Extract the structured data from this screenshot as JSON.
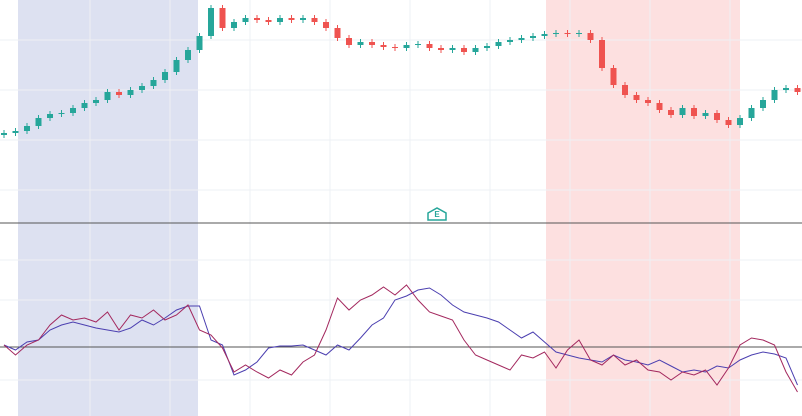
{
  "chart_data": [
    {
      "type": "candlestick",
      "annotation": "E",
      "up_color": "#26a69a",
      "down_color": "#ef5350",
      "ylim": [
        0,
        222
      ],
      "open": [
        87,
        89,
        91,
        96,
        104,
        108,
        109,
        114,
        119,
        122,
        130,
        127,
        132,
        136,
        142,
        150,
        162,
        172,
        186,
        214,
        194,
        200,
        204,
        202,
        200,
        204,
        202,
        204,
        200,
        194,
        184,
        177,
        180,
        177,
        175,
        174,
        177,
        178,
        174,
        172,
        174,
        170,
        174,
        176,
        180,
        182,
        184,
        186,
        188,
        189,
        188,
        189,
        182,
        154,
        137,
        127,
        122,
        119,
        112,
        107,
        114,
        106,
        109,
        102,
        97,
        104,
        114,
        122,
        132,
        134
      ],
      "high": [
        92,
        94,
        99,
        107,
        111,
        112,
        117,
        122,
        125,
        133,
        133,
        135,
        139,
        145,
        153,
        165,
        175,
        189,
        217,
        217,
        203,
        207,
        207,
        205,
        207,
        207,
        207,
        207,
        203,
        197,
        187,
        183,
        183,
        180,
        178,
        180,
        181,
        181,
        177,
        177,
        177,
        177,
        179,
        183,
        185,
        187,
        189,
        191,
        192,
        192,
        192,
        192,
        185,
        157,
        140,
        130,
        125,
        122,
        115,
        117,
        117,
        112,
        112,
        105,
        107,
        117,
        125,
        135,
        137,
        137
      ],
      "low": [
        84,
        86,
        88,
        93,
        101,
        105,
        106,
        111,
        116,
        119,
        124,
        124,
        129,
        133,
        139,
        147,
        159,
        169,
        183,
        191,
        191,
        197,
        199,
        197,
        197,
        199,
        199,
        197,
        191,
        181,
        174,
        174,
        174,
        172,
        171,
        171,
        174,
        171,
        169,
        169,
        167,
        167,
        171,
        173,
        177,
        179,
        181,
        183,
        185,
        185,
        185,
        179,
        151,
        134,
        124,
        119,
        116,
        109,
        104,
        104,
        103,
        103,
        99,
        94,
        94,
        101,
        111,
        119,
        129,
        127
      ],
      "close": [
        89,
        91,
        96,
        104,
        108,
        109,
        114,
        119,
        122,
        130,
        127,
        132,
        136,
        142,
        150,
        162,
        172,
        186,
        214,
        194,
        200,
        204,
        202,
        200,
        204,
        202,
        204,
        200,
        194,
        184,
        177,
        180,
        177,
        175,
        174,
        177,
        178,
        174,
        172,
        174,
        170,
        174,
        176,
        180,
        182,
        184,
        186,
        188,
        189,
        188,
        189,
        182,
        154,
        137,
        127,
        122,
        119,
        112,
        107,
        114,
        106,
        109,
        102,
        97,
        104,
        114,
        122,
        132,
        134,
        130
      ]
    },
    {
      "type": "line",
      "ylim": [
        0,
        190
      ],
      "reference_line": 67,
      "series": [
        {
          "color": "#4b3fb0",
          "values": [
            69,
            64,
            72,
            74,
            84,
            89,
            92,
            89,
            86,
            84,
            82,
            86,
            94,
            89,
            96,
            104,
            108,
            108,
            74,
            69,
            39,
            44,
            52,
            66,
            68,
            68,
            69,
            64,
            59,
            69,
            64,
            76,
            89,
            96,
            114,
            118,
            124,
            126,
            119,
            109,
            102,
            99,
            96,
            92,
            84,
            76,
            82,
            72,
            62,
            59,
            56,
            54,
            52,
            59,
            54,
            52,
            49,
            54,
            48,
            42,
            44,
            42,
            48,
            46,
            54,
            59,
            62,
            60,
            56,
            29
          ]
        },
        {
          "color": "#a3285e",
          "values": [
            69,
            59,
            69,
            74,
            89,
            99,
            94,
            96,
            92,
            102,
            84,
            99,
            96,
            104,
            94,
            99,
            109,
            84,
            79,
            66,
            42,
            49,
            42,
            36,
            44,
            39,
            52,
            59,
            84,
            116,
            104,
            114,
            119,
            127,
            119,
            129,
            114,
            102,
            98,
            94,
            74,
            59,
            54,
            49,
            44,
            59,
            56,
            62,
            46,
            64,
            74,
            54,
            49,
            59,
            49,
            54,
            44,
            42,
            34,
            42,
            39,
            44,
            29,
            46,
            69,
            76,
            74,
            69,
            42,
            22
          ]
        }
      ]
    }
  ]
}
